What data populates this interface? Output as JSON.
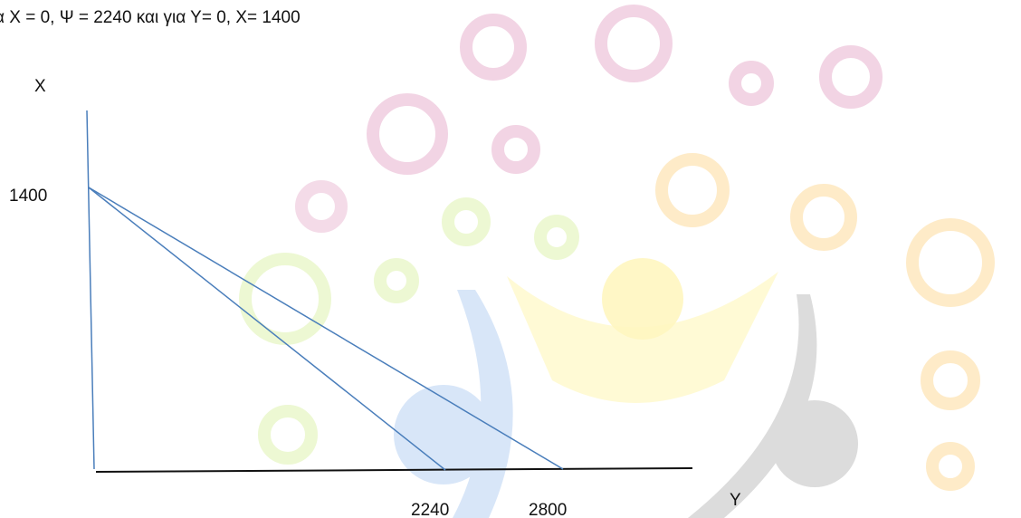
{
  "header_text": "α Χ = 0, Ψ = 2240 και για Υ= 0, Χ= 1400",
  "axes": {
    "vertical_label": "X",
    "horizontal_label": "Y"
  },
  "labels": {
    "vertical_intercept": "1400",
    "first_horizontal_intercept": "2240",
    "second_horizontal_intercept": "2800"
  }
}
